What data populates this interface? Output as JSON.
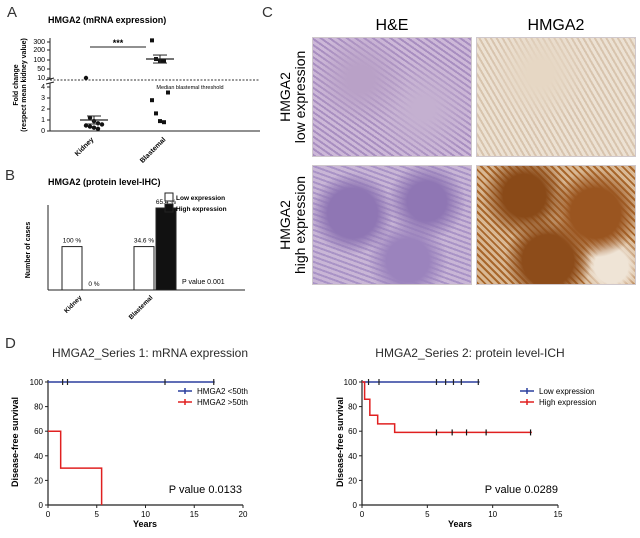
{
  "panel_letters": {
    "a": "A",
    "b": "B",
    "c": "C",
    "d": "D"
  },
  "panel_a": {
    "title": "HMGA2 (mRNA expression)",
    "ylabel_line1": "Fold change",
    "ylabel_line2": "(respect mean kidney value)",
    "threshold_label": "Median blastemal threshold",
    "significance": "***",
    "yticks_upper": [
      "300",
      "200",
      "100",
      "50",
      "10"
    ],
    "yticks_lower": [
      "4",
      "3",
      "2",
      "1",
      "0"
    ]
  },
  "panel_b": {
    "title": "HMGA2 (protein level-IHC)",
    "ylabel": "Number of cases",
    "legend": [
      {
        "label": "Low expression",
        "color": "#ffffff"
      },
      {
        "label": "High expression",
        "color": "#111111"
      }
    ],
    "pvalue": "P value 0.001",
    "pct_labels": [
      "100 %",
      "0 %",
      "34.6 %",
      "65.4 %"
    ]
  },
  "panel_c": {
    "col_labels": [
      "H&E",
      "HMGA2"
    ],
    "row_labels": [
      {
        "line1": "HMGA2",
        "line2": "low expression"
      },
      {
        "line1": "HMGA2",
        "line2": "high expression"
      }
    ]
  },
  "panel_d": {
    "left": {
      "title": "HMGA2_Series 1: mRNA expression",
      "ylabel": "Disease-free survival",
      "xlabel": "Years",
      "pvalue": "P value 0.0133",
      "legend": [
        {
          "label": "HMGA2 <50th",
          "color": "#2b3f9e"
        },
        {
          "label": "HMGA2 >50th",
          "color": "#e02020"
        }
      ]
    },
    "right": {
      "title": "HMGA2_Series 2: protein level-ICH",
      "ylabel": "Disease-free survival",
      "xlabel": "Years",
      "pvalue": "P value 0.0289",
      "legend": [
        {
          "label": "Low expression",
          "color": "#2b3f9e"
        },
        {
          "label": "High expression",
          "color": "#e02020"
        }
      ]
    }
  },
  "chart_data": [
    {
      "type": "scatter",
      "title": "HMGA2 (mRNA expression)",
      "ylabel": "Fold change (respect mean kidney value)",
      "categories": [
        "Kidney",
        "Blastemal"
      ],
      "y_scale": "broken axis: linear 0-4, log 10-300",
      "threshold": 9,
      "series": [
        {
          "name": "Kidney",
          "values": [
            4.6,
            1.2,
            0.9,
            0.7,
            0.6,
            0.5,
            0.4,
            0.3,
            0.2
          ]
        },
        {
          "name": "Blastemal",
          "values": [
            350,
            60,
            50,
            50,
            3.5,
            2.8,
            1.6,
            0.9,
            0.8
          ]
        }
      ],
      "means": {
        "Kidney": 1.0,
        "Blastemal": 60
      },
      "annotations": [
        "***",
        "Median blastemal threshold"
      ]
    },
    {
      "type": "bar",
      "title": "HMGA2 (protein level-IHC)",
      "ylabel": "Number of cases",
      "categories": [
        "Kidney",
        "Blastemal"
      ],
      "series": [
        {
          "name": "Low expression",
          "values": [
            9,
            9
          ]
        },
        {
          "name": "High expression",
          "values": [
            0,
            17
          ]
        }
      ],
      "ylim": [
        0,
        17
      ],
      "data_labels": [
        "100 %",
        "0 %",
        "34.6 %",
        "65.4 %"
      ],
      "annotations": [
        "P value 0.001"
      ]
    },
    {
      "type": "line",
      "title": "HMGA2_Series 1: mRNA expression",
      "xlabel": "Years",
      "ylabel": "Disease-free survival",
      "xlim": [
        0,
        20
      ],
      "ylim": [
        0,
        100
      ],
      "xticks": [
        0,
        5,
        10,
        15,
        20
      ],
      "yticks": [
        0,
        20,
        40,
        60,
        80,
        100
      ],
      "series": [
        {
          "name": "HMGA2 <50th",
          "steps": [
            [
              0,
              100
            ],
            [
              17.1,
              100
            ]
          ],
          "censored": [
            1.5,
            2.0,
            12.0,
            17.0
          ]
        },
        {
          "name": "HMGA2 >50th",
          "steps": [
            [
              0,
              60
            ],
            [
              1.3,
              60
            ],
            [
              1.3,
              30
            ],
            [
              5.5,
              30
            ],
            [
              5.5,
              0
            ]
          ],
          "censored": []
        }
      ],
      "annotations": [
        "P value 0.0133"
      ]
    },
    {
      "type": "line",
      "title": "HMGA2_Series 2: protein level-ICH",
      "xlabel": "Years",
      "ylabel": "Disease-free survival",
      "xlim": [
        0,
        15
      ],
      "ylim": [
        0,
        100
      ],
      "xticks": [
        0,
        5,
        10,
        15
      ],
      "yticks": [
        0,
        20,
        40,
        60,
        80,
        100
      ],
      "series": [
        {
          "name": "Low expression",
          "steps": [
            [
              0,
              100
            ],
            [
              9.0,
              100
            ]
          ],
          "censored": [
            0.5,
            1.3,
            5.7,
            6.4,
            7.0,
            7.6,
            8.9
          ]
        },
        {
          "name": "High expression",
          "steps": [
            [
              0,
              100
            ],
            [
              0.2,
              100
            ],
            [
              0.2,
              86
            ],
            [
              0.6,
              86
            ],
            [
              0.6,
              73
            ],
            [
              1.2,
              73
            ],
            [
              1.2,
              66
            ],
            [
              2.5,
              66
            ],
            [
              2.5,
              59
            ],
            [
              13.0,
              59
            ]
          ],
          "censored": [
            5.7,
            6.9,
            8.0,
            9.5,
            12.9
          ]
        }
      ],
      "annotations": [
        "P value 0.0289"
      ]
    }
  ]
}
